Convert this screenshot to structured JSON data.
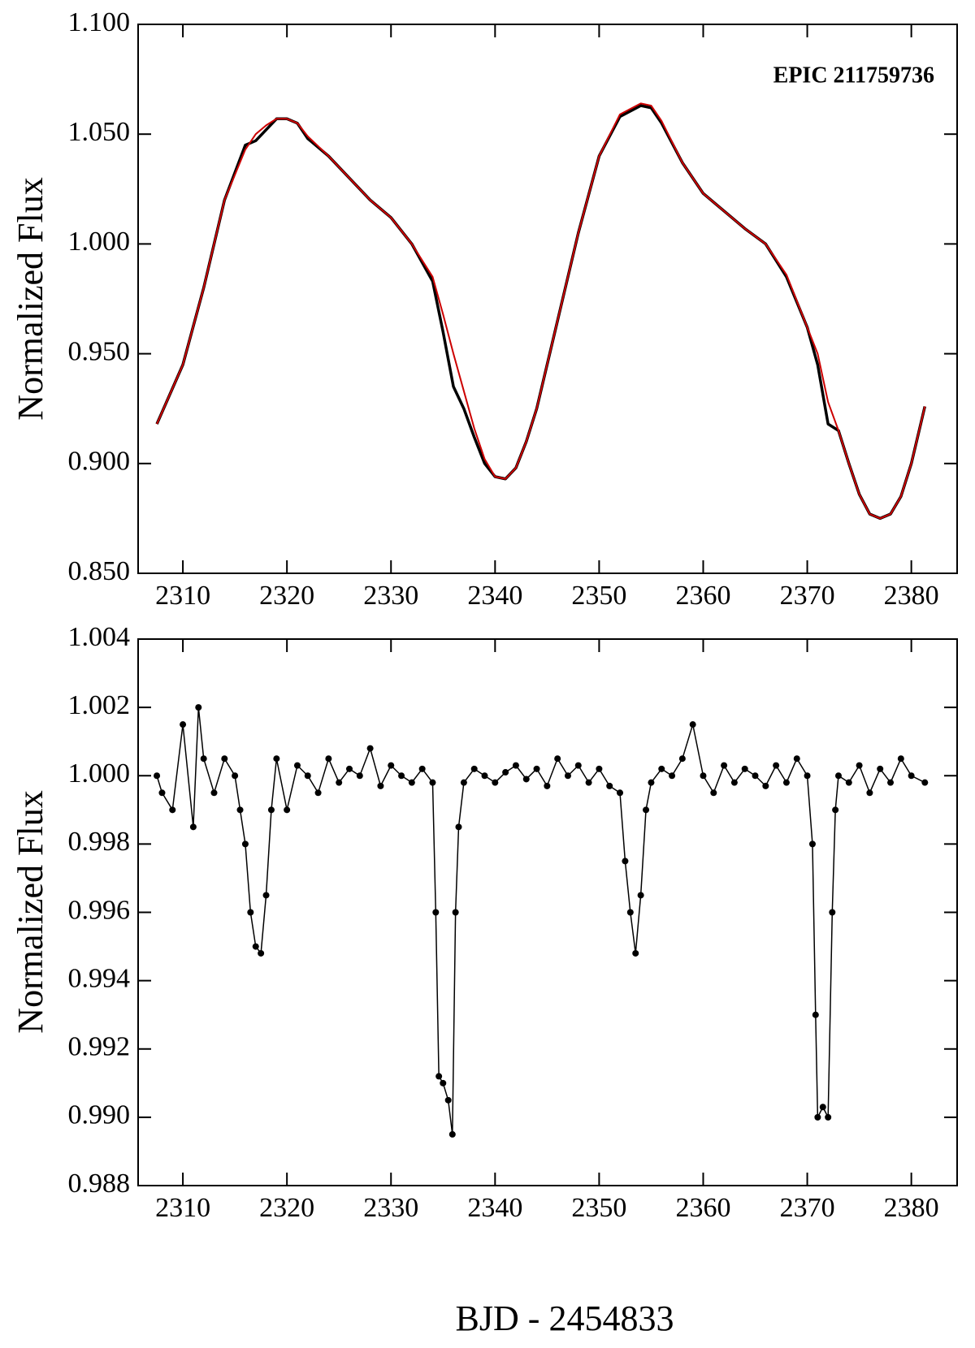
{
  "chart_data": [
    {
      "type": "line",
      "annotation": "EPIC 211759736",
      "ylabel": "Normalized Flux",
      "xlim": [
        2305.7,
        2384.4
      ],
      "xticks": [
        2310,
        2320,
        2330,
        2340,
        2350,
        2360,
        2370,
        2380
      ],
      "ylim": [
        0.85,
        1.1
      ],
      "yticks": [
        {
          "value": 0.85,
          "label": "0.850"
        },
        {
          "value": 0.9,
          "label": "0.900"
        },
        {
          "value": 0.95,
          "label": "0.950"
        },
        {
          "value": 1.0,
          "label": "1.000"
        },
        {
          "value": 1.05,
          "label": "1.050"
        },
        {
          "value": 1.1,
          "label": "1.100"
        }
      ],
      "x": [
        2307.5,
        2310,
        2312,
        2314,
        2316,
        2317,
        2318,
        2319,
        2320,
        2321,
        2322,
        2324,
        2326,
        2328,
        2330,
        2332,
        2334,
        2335,
        2336,
        2337,
        2338,
        2339,
        2340,
        2341,
        2342,
        2343,
        2344,
        2346,
        2348,
        2350,
        2352,
        2354,
        2355,
        2356,
        2358,
        2360,
        2362,
        2364,
        2366,
        2368,
        2370,
        2371,
        2372,
        2373,
        2374,
        2375,
        2376,
        2377,
        2378,
        2379,
        2380,
        2381.3
      ],
      "series": [
        {
          "color": "#000000",
          "values": [
            0.918,
            0.945,
            0.98,
            1.02,
            1.045,
            1.047,
            1.052,
            1.057,
            1.057,
            1.055,
            1.048,
            1.04,
            1.03,
            1.02,
            1.012,
            1.0,
            0.983,
            0.96,
            0.935,
            0.925,
            0.912,
            0.9,
            0.894,
            0.893,
            0.898,
            0.91,
            0.925,
            0.965,
            1.005,
            1.04,
            1.058,
            1.063,
            1.062,
            1.055,
            1.037,
            1.023,
            1.015,
            1.007,
            1.0,
            0.985,
            0.962,
            0.945,
            0.918,
            0.915,
            0.9,
            0.886,
            0.877,
            0.875,
            0.877,
            0.885,
            0.9,
            0.926
          ]
        },
        {
          "color": "#cc0000",
          "values": [
            0.918,
            0.945,
            0.98,
            1.02,
            1.043,
            1.05,
            1.054,
            1.057,
            1.057,
            1.055,
            1.049,
            1.04,
            1.03,
            1.02,
            1.012,
            1.0,
            0.985,
            0.968,
            0.95,
            0.933,
            0.916,
            0.902,
            0.894,
            0.893,
            0.898,
            0.91,
            0.925,
            0.965,
            1.005,
            1.04,
            1.059,
            1.064,
            1.063,
            1.056,
            1.037,
            1.023,
            1.015,
            1.007,
            1.0,
            0.986,
            0.962,
            0.95,
            0.928,
            0.915,
            0.9,
            0.886,
            0.877,
            0.875,
            0.877,
            0.885,
            0.9,
            0.926
          ]
        }
      ]
    },
    {
      "type": "line",
      "markers": true,
      "ylabel": "Normalized Flux",
      "xlabel": "BJD - 2454833",
      "xlim": [
        2305.7,
        2384.4
      ],
      "xticks": [
        2310,
        2320,
        2330,
        2340,
        2350,
        2360,
        2370,
        2380
      ],
      "ylim": [
        0.988,
        1.004
      ],
      "yticks": [
        0.988,
        {
          "value": 0.99,
          "label": "0.990"
        },
        0.992,
        0.994,
        0.996,
        0.998,
        {
          "value": 1.0,
          "label": "1.000"
        },
        1.002,
        1.004
      ],
      "x": [
        2307.5,
        2308,
        2309,
        2310,
        2311,
        2311.5,
        2312,
        2313,
        2314,
        2315,
        2315.5,
        2316,
        2316.5,
        2317,
        2317.5,
        2318,
        2318.5,
        2319,
        2320,
        2321,
        2322,
        2323,
        2324,
        2325,
        2326,
        2327,
        2328,
        2329,
        2330,
        2331,
        2332,
        2333,
        2334,
        2334.3,
        2334.6,
        2335,
        2335.5,
        2335.9,
        2336.2,
        2336.5,
        2337,
        2338,
        2339,
        2340,
        2341,
        2342,
        2343,
        2344,
        2345,
        2346,
        2347,
        2348,
        2349,
        2350,
        2351,
        2352,
        2352.5,
        2353,
        2353.5,
        2354,
        2354.5,
        2355,
        2356,
        2357,
        2358,
        2359,
        2360,
        2361,
        2362,
        2363,
        2364,
        2365,
        2366,
        2367,
        2368,
        2369,
        2370,
        2370.5,
        2370.8,
        2371,
        2371.5,
        2372,
        2372.4,
        2372.7,
        2373,
        2374,
        2375,
        2376,
        2377,
        2378,
        2379,
        2380,
        2381.3
      ],
      "series": [
        {
          "color": "#000000",
          "values": [
            1.0,
            0.9995,
            0.999,
            1.0015,
            0.9985,
            1.002,
            1.0005,
            0.9995,
            1.0005,
            1.0,
            0.999,
            0.998,
            0.996,
            0.995,
            0.9948,
            0.9965,
            0.999,
            1.0005,
            0.999,
            1.0003,
            1.0,
            0.9995,
            1.0005,
            0.9998,
            1.0002,
            1.0,
            1.0008,
            0.9997,
            1.0003,
            1.0,
            0.9998,
            1.0002,
            0.9998,
            0.996,
            0.9912,
            0.991,
            0.9905,
            0.9895,
            0.996,
            0.9985,
            0.9998,
            1.0002,
            1.0,
            0.9998,
            1.0001,
            1.0003,
            0.9999,
            1.0002,
            0.9997,
            1.0005,
            1.0,
            1.0003,
            0.9998,
            1.0002,
            0.9997,
            0.9995,
            0.9975,
            0.996,
            0.9948,
            0.9965,
            0.999,
            0.9998,
            1.0002,
            1.0,
            1.0005,
            1.0015,
            1.0,
            0.9995,
            1.0003,
            0.9998,
            1.0002,
            1.0,
            0.9997,
            1.0003,
            0.9998,
            1.0005,
            1.0,
            0.998,
            0.993,
            0.99,
            0.9903,
            0.99,
            0.996,
            0.999,
            1.0,
            0.9998,
            1.0003,
            0.9995,
            1.0002,
            0.9998,
            1.0005,
            1.0,
            0.9998
          ]
        }
      ]
    }
  ]
}
